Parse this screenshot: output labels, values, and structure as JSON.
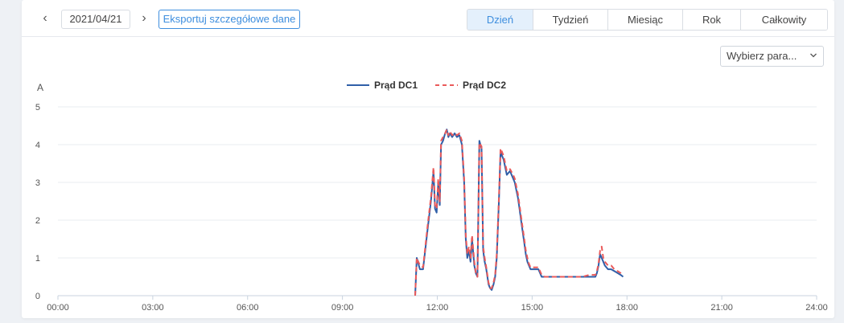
{
  "toolbar": {
    "prev_label": "‹",
    "next_label": "›",
    "date": "2021/04/21",
    "export_label": "Eksportuj szczegółowe dane",
    "tabs": [
      {
        "label": "Dzień",
        "active": true
      },
      {
        "label": "Tydzień",
        "active": false
      },
      {
        "label": "Miesiąc",
        "active": false
      },
      {
        "label": "Rok",
        "active": false
      },
      {
        "label": "Całkowity",
        "active": false
      }
    ]
  },
  "param_select": {
    "label": "Wybierz para...",
    "icon": "chevron-down-icon"
  },
  "colors": {
    "accent": "#3e8ede",
    "dc1": "#2f5fa8",
    "dc2": "#ea5a5a",
    "grid": "#e9ecf0",
    "axis": "#c9d3df",
    "tick_text": "#555555"
  },
  "chart_data": {
    "type": "line",
    "title": "",
    "ylabel": "A",
    "xlabel": "",
    "ylim": [
      0,
      5
    ],
    "yticks": [
      0,
      1,
      2,
      3,
      4,
      5
    ],
    "xlim": [
      0,
      24
    ],
    "xticks": [
      "00:00",
      "03:00",
      "06:00",
      "09:00",
      "12:00",
      "15:00",
      "18:00",
      "21:00",
      "24:00"
    ],
    "grid": true,
    "legend_position": "top-center",
    "series": [
      {
        "name": "Prąd DC1",
        "style": "solid",
        "x": [
          11.3,
          11.35,
          11.45,
          11.55,
          11.7,
          11.8,
          11.88,
          11.93,
          11.98,
          12.03,
          12.08,
          12.12,
          12.18,
          12.25,
          12.3,
          12.35,
          12.4,
          12.47,
          12.55,
          12.62,
          12.7,
          12.78,
          12.85,
          12.9,
          12.95,
          13.0,
          13.05,
          13.1,
          13.17,
          13.22,
          13.27,
          13.33,
          13.4,
          13.45,
          13.5,
          13.55,
          13.62,
          13.67,
          13.72,
          13.78,
          13.83,
          13.88,
          13.95,
          14.0,
          14.1,
          14.2,
          14.3,
          14.4,
          14.45,
          14.5,
          14.55,
          14.6,
          14.65,
          14.7,
          14.75,
          14.8,
          14.85,
          14.9,
          14.95,
          15.0,
          15.1,
          15.2,
          15.3,
          15.4,
          15.5,
          15.6,
          15.7,
          15.8,
          15.9,
          16.0,
          16.2,
          16.4,
          16.6,
          16.8,
          17.0,
          17.05,
          17.1,
          17.15,
          17.2,
          17.25,
          17.3,
          17.4,
          17.5,
          17.6,
          17.7,
          17.8,
          17.88
        ],
        "values": [
          0.0,
          1.0,
          0.7,
          0.7,
          1.8,
          2.5,
          3.3,
          2.3,
          2.2,
          3.0,
          2.4,
          4.0,
          4.1,
          4.3,
          4.4,
          4.2,
          4.3,
          4.2,
          4.3,
          4.2,
          4.25,
          4.0,
          3.0,
          1.5,
          1.0,
          1.2,
          0.9,
          1.5,
          0.8,
          0.6,
          0.5,
          4.1,
          3.9,
          1.2,
          0.9,
          0.7,
          0.3,
          0.2,
          0.15,
          0.3,
          0.5,
          1.0,
          2.5,
          3.8,
          3.6,
          3.2,
          3.3,
          3.1,
          3.0,
          2.8,
          2.6,
          2.3,
          2.0,
          1.7,
          1.4,
          1.1,
          0.9,
          0.8,
          0.7,
          0.7,
          0.7,
          0.7,
          0.5,
          0.5,
          0.5,
          0.5,
          0.5,
          0.5,
          0.5,
          0.5,
          0.5,
          0.5,
          0.5,
          0.5,
          0.5,
          0.6,
          0.8,
          1.1,
          1.0,
          0.9,
          0.8,
          0.7,
          0.7,
          0.65,
          0.6,
          0.55,
          0.5
        ]
      },
      {
        "name": "Prąd DC2",
        "style": "dashed",
        "x": [
          11.3,
          11.35,
          11.45,
          11.55,
          11.7,
          11.8,
          11.88,
          11.93,
          11.98,
          12.03,
          12.08,
          12.12,
          12.18,
          12.25,
          12.3,
          12.35,
          12.4,
          12.47,
          12.55,
          12.62,
          12.7,
          12.78,
          12.85,
          12.9,
          12.95,
          13.0,
          13.05,
          13.1,
          13.17,
          13.22,
          13.27,
          13.33,
          13.4,
          13.45,
          13.5,
          13.55,
          13.62,
          13.67,
          13.72,
          13.78,
          13.83,
          13.88,
          13.95,
          14.0,
          14.1,
          14.2,
          14.3,
          14.4,
          14.45,
          14.5,
          14.55,
          14.6,
          14.65,
          14.7,
          14.75,
          14.8,
          14.85,
          14.9,
          14.95,
          15.0,
          15.1,
          15.2,
          15.3,
          15.4,
          15.5,
          15.6,
          15.7,
          15.8,
          15.9,
          16.0,
          16.2,
          16.4,
          16.6,
          16.8,
          17.0,
          17.05,
          17.1,
          17.15,
          17.2,
          17.25,
          17.3,
          17.4,
          17.5,
          17.6,
          17.7,
          17.8,
          17.88
        ],
        "values": [
          0.0,
          1.0,
          0.8,
          0.75,
          1.9,
          2.6,
          3.4,
          2.4,
          2.3,
          3.1,
          2.5,
          4.1,
          4.2,
          4.3,
          4.4,
          4.25,
          4.35,
          4.25,
          4.3,
          4.25,
          4.3,
          4.1,
          3.1,
          1.6,
          1.1,
          1.3,
          1.0,
          1.6,
          0.9,
          0.6,
          0.5,
          4.05,
          3.95,
          1.3,
          1.0,
          0.75,
          0.35,
          0.2,
          0.2,
          0.35,
          0.55,
          1.1,
          2.6,
          3.9,
          3.7,
          3.3,
          3.35,
          3.2,
          3.1,
          2.9,
          2.7,
          2.4,
          2.1,
          1.8,
          1.5,
          1.2,
          1.0,
          0.85,
          0.75,
          0.75,
          0.75,
          0.75,
          0.55,
          0.5,
          0.5,
          0.5,
          0.5,
          0.5,
          0.5,
          0.5,
          0.5,
          0.5,
          0.5,
          0.55,
          0.55,
          0.65,
          0.85,
          1.2,
          1.3,
          1.0,
          0.9,
          0.8,
          0.8,
          0.7,
          0.65,
          0.6,
          0.55
        ]
      }
    ]
  }
}
